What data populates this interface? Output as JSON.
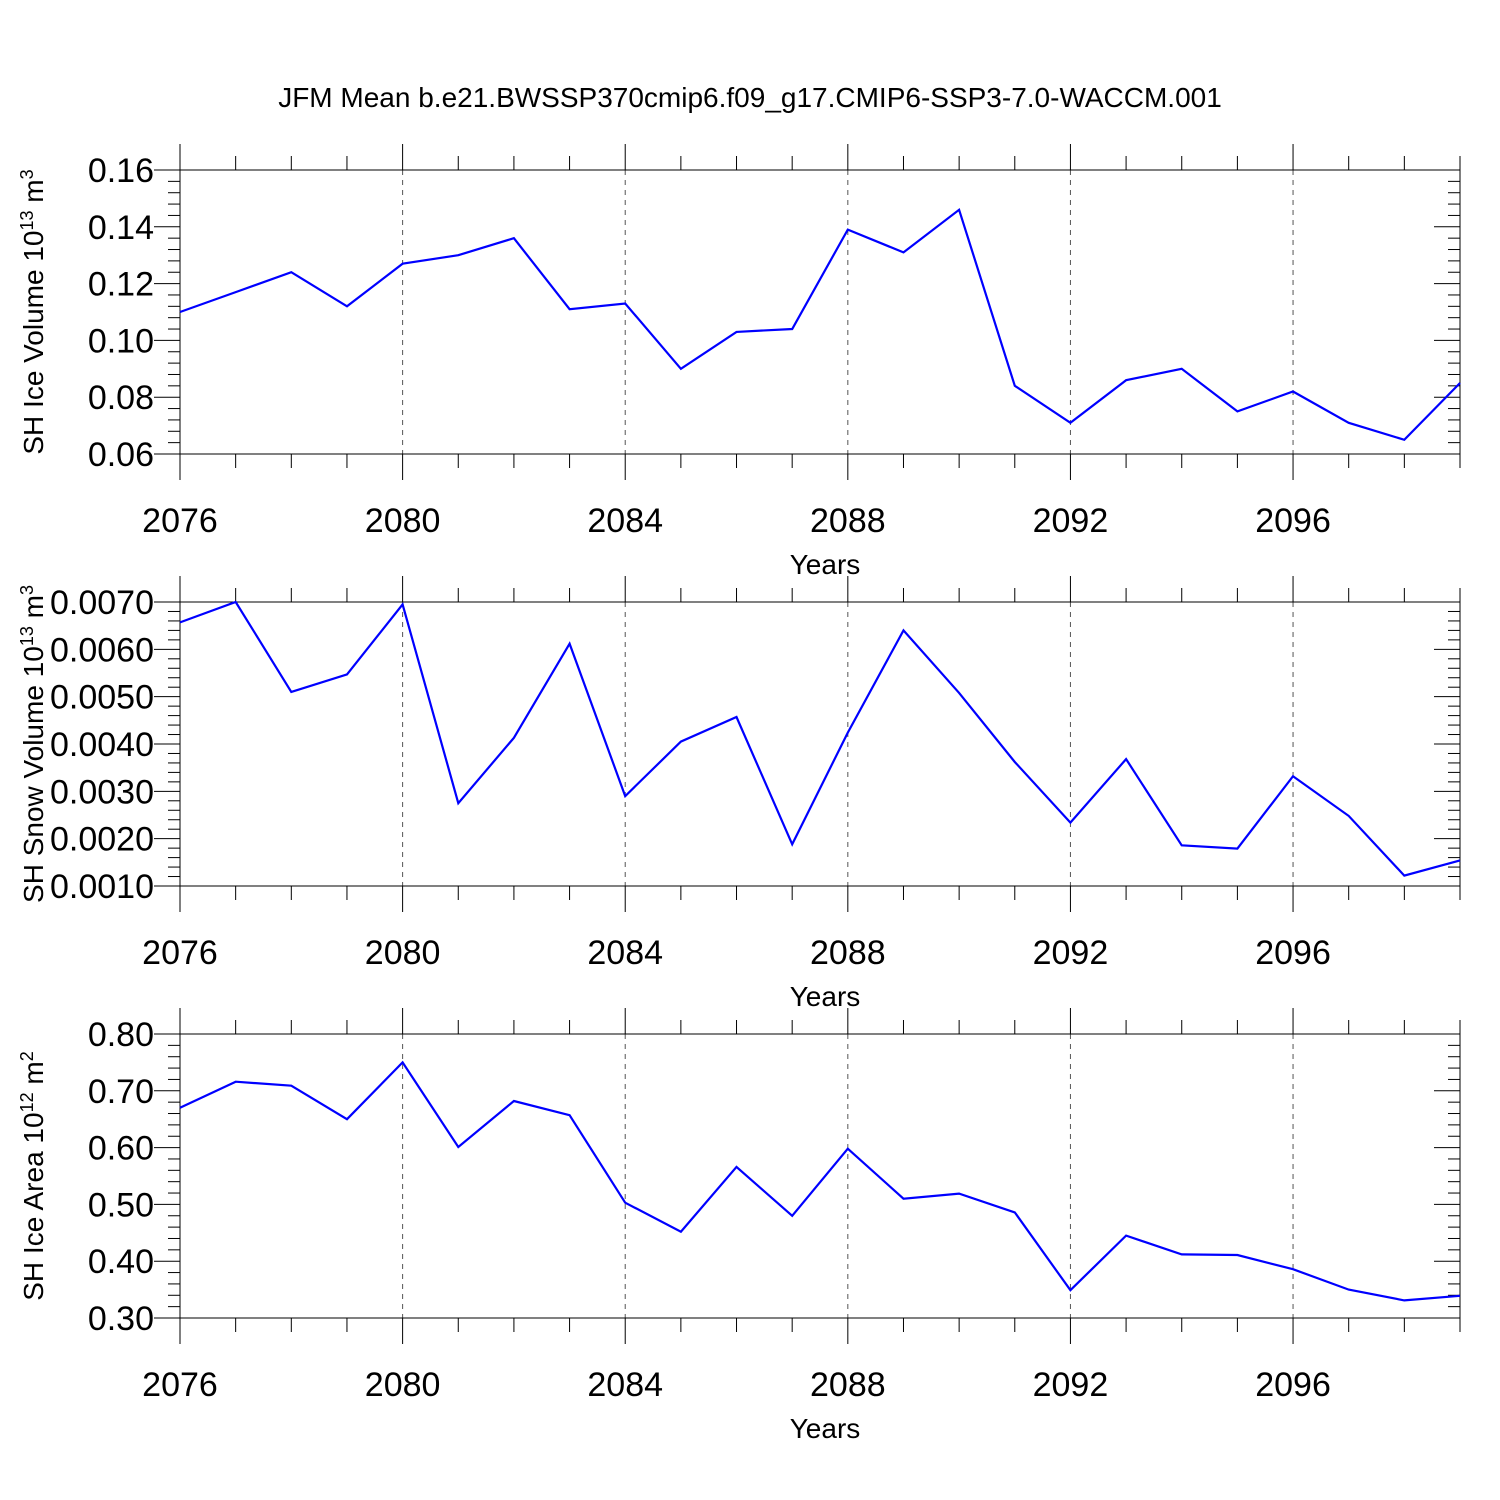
{
  "title": "JFM Mean b.e21.BWSSP370cmip6.f09_g17.CMIP6-SSP3-7.0-WACCM.001",
  "line_color": "#0000ff",
  "chart_data": [
    {
      "type": "line",
      "title": "",
      "xlabel": "Years",
      "ylabel_parts": [
        "SH Ice Volume 10",
        "13",
        " m",
        "3"
      ],
      "ylabel": "SH Ice Volume 10^13 m^3",
      "xlim": [
        2076,
        2099
      ],
      "ylim": [
        0.06,
        0.16
      ],
      "grid": "dashed vertical at major x ticks",
      "x_ticks": [
        2076,
        2080,
        2084,
        2088,
        2092,
        2096
      ],
      "x_tick_labels": [
        "2076",
        "2080",
        "2084",
        "2088",
        "2092",
        "2096"
      ],
      "y_ticks": [
        0.06,
        0.08,
        0.1,
        0.12,
        0.14,
        0.16
      ],
      "y_tick_labels": [
        "0.06",
        "0.08",
        "0.10",
        "0.12",
        "0.14",
        "0.16"
      ],
      "y_minor_step": 0.004,
      "x": [
        2076,
        2077,
        2078,
        2079,
        2080,
        2081,
        2082,
        2083,
        2084,
        2085,
        2086,
        2087,
        2088,
        2089,
        2090,
        2091,
        2092,
        2093,
        2094,
        2095,
        2096,
        2097,
        2098,
        2099
      ],
      "series": [
        {
          "name": "SH Ice Volume",
          "values": [
            0.11,
            0.117,
            0.124,
            0.112,
            0.127,
            0.13,
            0.136,
            0.111,
            0.113,
            0.09,
            0.103,
            0.104,
            0.139,
            0.131,
            0.146,
            0.084,
            0.071,
            0.086,
            0.09,
            0.075,
            0.082,
            0.071,
            0.065,
            0.085
          ]
        }
      ]
    },
    {
      "type": "line",
      "title": "",
      "xlabel": "Years",
      "ylabel_parts": [
        "SH Snow Volume 10",
        "13",
        " m",
        "3"
      ],
      "ylabel": "SH Snow Volume 10^13 m^3",
      "xlim": [
        2076,
        2099
      ],
      "ylim": [
        0.001,
        0.007
      ],
      "grid": "dashed vertical at major x ticks",
      "x_ticks": [
        2076,
        2080,
        2084,
        2088,
        2092,
        2096
      ],
      "x_tick_labels": [
        "2076",
        "2080",
        "2084",
        "2088",
        "2092",
        "2096"
      ],
      "y_ticks": [
        0.001,
        0.002,
        0.003,
        0.004,
        0.005,
        0.006,
        0.007
      ],
      "y_tick_labels": [
        "0.0010",
        "0.0020",
        "0.0030",
        "0.0040",
        "0.0050",
        "0.0060",
        "0.0070"
      ],
      "y_minor_step": 0.0002,
      "x": [
        2076,
        2077,
        2078,
        2079,
        2080,
        2081,
        2082,
        2083,
        2084,
        2085,
        2086,
        2087,
        2088,
        2089,
        2090,
        2091,
        2092,
        2093,
        2094,
        2095,
        2096,
        2097,
        2098,
        2099
      ],
      "series": [
        {
          "name": "SH Snow Volume",
          "values": [
            0.00657,
            0.007,
            0.0051,
            0.00547,
            0.00695,
            0.00275,
            0.00413,
            0.00612,
            0.0029,
            0.00405,
            0.00457,
            0.00188,
            0.00424,
            0.0064,
            0.00508,
            0.00362,
            0.00234,
            0.00368,
            0.00186,
            0.00179,
            0.00332,
            0.00248,
            0.00122,
            0.00154
          ]
        }
      ]
    },
    {
      "type": "line",
      "title": "",
      "xlabel": "Years",
      "ylabel_parts": [
        "SH Ice Area 10",
        "12",
        " m",
        "2"
      ],
      "ylabel": "SH Ice Area 10^12 m^2",
      "xlim": [
        2076,
        2099
      ],
      "ylim": [
        0.3,
        0.8
      ],
      "grid": "dashed vertical at major x ticks",
      "x_ticks": [
        2076,
        2080,
        2084,
        2088,
        2092,
        2096
      ],
      "x_tick_labels": [
        "2076",
        "2080",
        "2084",
        "2088",
        "2092",
        "2096"
      ],
      "y_ticks": [
        0.3,
        0.4,
        0.5,
        0.6,
        0.7,
        0.8
      ],
      "y_tick_labels": [
        "0.30",
        "0.40",
        "0.50",
        "0.60",
        "0.70",
        "0.80"
      ],
      "y_minor_step": 0.02,
      "x": [
        2076,
        2077,
        2078,
        2079,
        2080,
        2081,
        2082,
        2083,
        2084,
        2085,
        2086,
        2087,
        2088,
        2089,
        2090,
        2091,
        2092,
        2093,
        2094,
        2095,
        2096,
        2097,
        2098,
        2099
      ],
      "series": [
        {
          "name": "SH Ice Area",
          "values": [
            0.67,
            0.716,
            0.709,
            0.65,
            0.75,
            0.601,
            0.682,
            0.657,
            0.503,
            0.452,
            0.566,
            0.48,
            0.598,
            0.51,
            0.519,
            0.486,
            0.349,
            0.445,
            0.412,
            0.411,
            0.386,
            0.35,
            0.331,
            0.339
          ]
        }
      ]
    }
  ]
}
